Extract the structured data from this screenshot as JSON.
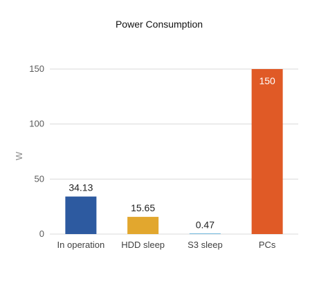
{
  "chart_data": {
    "type": "bar",
    "title": "Power Consumption",
    "xlabel": "",
    "ylabel": "W",
    "categories": [
      "In operation",
      "HDD sleep",
      "S3 sleep",
      "PCs"
    ],
    "values": [
      34.13,
      15.65,
      0.47,
      150
    ],
    "value_labels": [
      "34.13",
      "15.65",
      "0.47",
      "150"
    ],
    "colors": [
      "#2d5aa0",
      "#e2a72e",
      "#3f9fd1",
      "#e05a26"
    ],
    "ylim": [
      0,
      150
    ],
    "yticks": [
      0,
      50,
      100,
      150
    ],
    "grid": true,
    "legend": "none",
    "label_position": [
      "above",
      "above",
      "above",
      "inside-top"
    ],
    "label_colors": [
      "#222222",
      "#222222",
      "#222222",
      "#ffffff"
    ]
  }
}
